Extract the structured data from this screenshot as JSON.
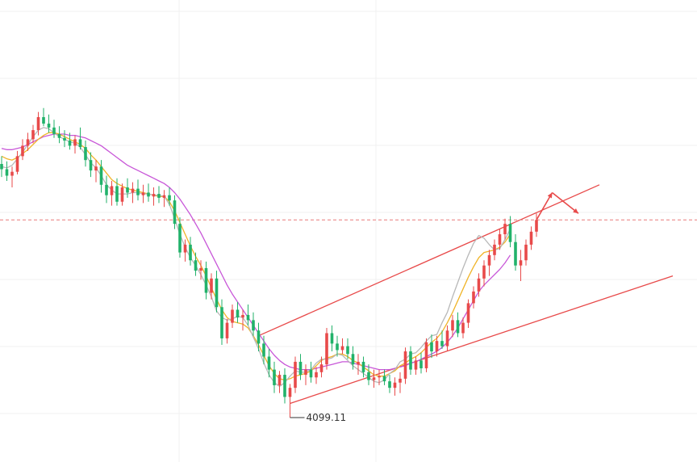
{
  "chart_data": {
    "type": "candlestick",
    "title": "",
    "xlabel": "",
    "ylabel": "",
    "ylim": [
      4065,
      4420
    ],
    "colors": {
      "up": "#e84a4a",
      "down": "#21b26a",
      "ma_short": "#b8b8b8",
      "ma_mid": "#f0b429",
      "ma_long": "#c857d8",
      "channel": "#e84a4a",
      "current_price_line": "#e87a7a",
      "grid": "#f0f0f0"
    },
    "low_annotation": {
      "label": "4099.11",
      "value": 4099.11,
      "candle_index": 55
    },
    "current_price": 4251,
    "candles": [
      [
        4294,
        4300,
        4284,
        4290
      ],
      [
        4290,
        4296,
        4281,
        4285
      ],
      [
        4285,
        4292,
        4276,
        4288
      ],
      [
        4288,
        4304,
        4286,
        4300
      ],
      [
        4300,
        4313,
        4297,
        4308
      ],
      [
        4308,
        4318,
        4304,
        4313
      ],
      [
        4313,
        4324,
        4310,
        4320
      ],
      [
        4320,
        4334,
        4316,
        4330
      ],
      [
        4330,
        4337,
        4323,
        4325
      ],
      [
        4325,
        4332,
        4318,
        4322
      ],
      [
        4322,
        4328,
        4314,
        4317
      ],
      [
        4317,
        4323,
        4310,
        4314
      ],
      [
        4314,
        4320,
        4307,
        4312
      ],
      [
        4312,
        4318,
        4305,
        4308
      ],
      [
        4308,
        4316,
        4302,
        4313
      ],
      [
        4313,
        4322,
        4305,
        4307
      ],
      [
        4307,
        4312,
        4292,
        4297
      ],
      [
        4297,
        4303,
        4284,
        4289
      ],
      [
        4289,
        4297,
        4280,
        4292
      ],
      [
        4292,
        4297,
        4272,
        4278
      ],
      [
        4278,
        4285,
        4264,
        4270
      ],
      [
        4270,
        4281,
        4262,
        4277
      ],
      [
        4277,
        4283,
        4262,
        4265
      ],
      [
        4265,
        4279,
        4262,
        4276
      ],
      [
        4276,
        4283,
        4268,
        4272
      ],
      [
        4272,
        4280,
        4264,
        4275
      ],
      [
        4275,
        4282,
        4266,
        4270
      ],
      [
        4270,
        4278,
        4264,
        4272
      ],
      [
        4272,
        4279,
        4265,
        4269
      ],
      [
        4269,
        4276,
        4262,
        4271
      ],
      [
        4271,
        4277,
        4264,
        4268
      ],
      [
        4268,
        4274,
        4261,
        4270
      ],
      [
        4270,
        4276,
        4262,
        4266
      ],
      [
        4266,
        4270,
        4244,
        4248
      ],
      [
        4248,
        4253,
        4222,
        4226
      ],
      [
        4226,
        4236,
        4219,
        4232
      ],
      [
        4232,
        4238,
        4216,
        4220
      ],
      [
        4220,
        4226,
        4208,
        4212
      ],
      [
        4212,
        4220,
        4205,
        4214
      ],
      [
        4214,
        4219,
        4190,
        4195
      ],
      [
        4195,
        4210,
        4190,
        4206
      ],
      [
        4206,
        4212,
        4180,
        4184
      ],
      [
        4184,
        4190,
        4155,
        4160
      ],
      [
        4160,
        4175,
        4156,
        4172
      ],
      [
        4172,
        4186,
        4168,
        4182
      ],
      [
        4182,
        4188,
        4172,
        4176
      ],
      [
        4176,
        4182,
        4166,
        4178
      ],
      [
        4178,
        4186,
        4170,
        4174
      ],
      [
        4174,
        4180,
        4162,
        4166
      ],
      [
        4166,
        4172,
        4150,
        4156
      ],
      [
        4156,
        4162,
        4140,
        4146
      ],
      [
        4146,
        4152,
        4130,
        4136
      ],
      [
        4136,
        4142,
        4118,
        4124
      ],
      [
        4124,
        4135,
        4118,
        4132
      ],
      [
        4132,
        4137,
        4110,
        4115
      ],
      [
        4115,
        4125,
        4099.11,
        4122
      ],
      [
        4122,
        4146,
        4118,
        4142
      ],
      [
        4142,
        4148,
        4128,
        4132
      ],
      [
        4132,
        4140,
        4124,
        4136
      ],
      [
        4136,
        4142,
        4126,
        4130
      ],
      [
        4130,
        4138,
        4125,
        4134
      ],
      [
        4134,
        4146,
        4130,
        4140
      ],
      [
        4140,
        4168,
        4136,
        4164
      ],
      [
        4164,
        4170,
        4150,
        4156
      ],
      [
        4156,
        4162,
        4146,
        4151
      ],
      [
        4151,
        4160,
        4148,
        4154
      ],
      [
        4154,
        4160,
        4144,
        4148
      ],
      [
        4148,
        4154,
        4136,
        4140
      ],
      [
        4140,
        4148,
        4132,
        4142
      ],
      [
        4142,
        4146,
        4130,
        4134
      ],
      [
        4134,
        4140,
        4124,
        4128
      ],
      [
        4128,
        4136,
        4122,
        4130
      ],
      [
        4130,
        4136,
        4124,
        4131
      ],
      [
        4131,
        4136,
        4124,
        4127
      ],
      [
        4127,
        4132,
        4118,
        4122
      ],
      [
        4122,
        4130,
        4116,
        4126
      ],
      [
        4126,
        4134,
        4118,
        4129
      ],
      [
        4129,
        4153,
        4125,
        4150
      ],
      [
        4150,
        4154,
        4132,
        4136
      ],
      [
        4136,
        4146,
        4132,
        4143
      ],
      [
        4143,
        4149,
        4133,
        4137
      ],
      [
        4137,
        4160,
        4134,
        4157
      ],
      [
        4157,
        4163,
        4145,
        4150
      ],
      [
        4150,
        4162,
        4146,
        4158
      ],
      [
        4158,
        4166,
        4152,
        4154
      ],
      [
        4154,
        4170,
        4150,
        4166
      ],
      [
        4166,
        4178,
        4161,
        4174
      ],
      [
        4174,
        4180,
        4161,
        4164
      ],
      [
        4164,
        4176,
        4160,
        4172
      ],
      [
        4172,
        4190,
        4168,
        4187
      ],
      [
        4187,
        4200,
        4183,
        4196
      ],
      [
        4196,
        4210,
        4192,
        4206
      ],
      [
        4206,
        4220,
        4200,
        4216
      ],
      [
        4216,
        4228,
        4208,
        4224
      ],
      [
        4224,
        4236,
        4220,
        4232
      ],
      [
        4232,
        4244,
        4228,
        4240
      ],
      [
        4240,
        4252,
        4236,
        4248
      ],
      [
        4248,
        4254,
        4230,
        4234
      ],
      [
        4234,
        4240,
        4212,
        4216
      ],
      [
        4216,
        4228,
        4204,
        4220
      ],
      [
        4220,
        4236,
        4216,
        4232
      ],
      [
        4232,
        4246,
        4228,
        4242
      ],
      [
        4242,
        4256,
        4238,
        4251
      ]
    ],
    "ma_short": [
      4292,
      4291,
      4293,
      4298,
      4303,
      4309,
      4315,
      4320,
      4322,
      4321,
      4318,
      4315,
      4313,
      4311,
      4310,
      4307,
      4301,
      4295,
      4291,
      4285,
      4278,
      4274,
      4271,
      4271,
      4271,
      4272,
      4272,
      4271,
      4271,
      4270,
      4270,
      4269,
      4263,
      4252,
      4240,
      4230,
      4222,
      4216,
      4209,
      4201,
      4192,
      4181,
      4176,
      4174,
      4175,
      4177,
      4176,
      4170,
      4161,
      4152,
      4141,
      4132,
      4126,
      4123,
      4126,
      4131,
      4135,
      4134,
      4134,
      4136,
      4141,
      4144,
      4144,
      4145,
      4148,
      4147,
      4143,
      4139,
      4136,
      4133,
      4130,
      4127,
      4126,
      4128,
      4133,
      4136,
      4142,
      4144,
      4148,
      4149,
      4153,
      4158,
      4162,
      4163,
      4172,
      4180,
      4192,
      4203,
      4214,
      4224,
      4233,
      4239,
      4237,
      4232,
      4228,
      4229,
      4236,
      4244
    ],
    "ma_mid": [
      4300,
      4298,
      4297,
      4299,
      4302,
      4305,
      4309,
      4313,
      4316,
      4318,
      4318,
      4317,
      4315,
      4313,
      4311,
      4309,
      4306,
      4301,
      4297,
      4292,
      4287,
      4282,
      4279,
      4277,
      4275,
      4274,
      4273,
      4272,
      4271,
      4270,
      4269,
      4269,
      4265,
      4258,
      4249,
      4240,
      4231,
      4223,
      4216,
      4208,
      4199,
      4190,
      4182,
      4176,
      4173,
      4172,
      4171,
      4168,
      4162,
      4155,
      4147,
      4139,
      4133,
      4129,
      4128,
      4129,
      4131,
      4132,
      4133,
      4135,
      4139,
      4143,
      4145,
      4146,
      4148,
      4148,
      4146,
      4143,
      4141,
      4138,
      4135,
      4132,
      4131,
      4131,
      4133,
      4135,
      4139,
      4141,
      4144,
      4146,
      4149,
      4153,
      4157,
      4160,
      4165,
      4172,
      4180,
      4189,
      4198,
      4207,
      4215,
      4222,
      4226,
      4227,
      4228,
      4230,
      4234,
      4240
    ],
    "ma_long": [
      4306,
      4305,
      4305,
      4306,
      4307,
      4309,
      4311,
      4313,
      4315,
      4316,
      4317,
      4317,
      4317,
      4316,
      4316,
      4315,
      4314,
      4312,
      4310,
      4308,
      4305,
      4302,
      4299,
      4296,
      4293,
      4291,
      4289,
      4287,
      4285,
      4283,
      4281,
      4279,
      4276,
      4272,
      4267,
      4261,
      4255,
      4248,
      4241,
      4233,
      4225,
      4217,
      4209,
      4201,
      4194,
      4188,
      4182,
      4176,
      4170,
      4164,
      4158,
      4152,
      4147,
      4143,
      4140,
      4138,
      4137,
      4136,
      4136,
      4136,
      4137,
      4138,
      4139,
      4140,
      4141,
      4142,
      4142,
      4141,
      4140,
      4139,
      4138,
      4137,
      4136,
      4136,
      4136,
      4137,
      4138,
      4139,
      4141,
      4142,
      4144,
      4146,
      4148,
      4150,
      4153,
      4157,
      4162,
      4168,
      4175,
      4182,
      4189,
      4196,
      4201,
      4205,
      4209,
      4213,
      4218,
      4224
    ],
    "channel": {
      "upper_start": {
        "candle_index": 49,
        "value": 4162
      },
      "upper_end": {
        "candle_index": 114,
        "value": 4278
      },
      "lower_start": {
        "candle_index": 55,
        "value": 4110
      },
      "lower_end": {
        "candle_index": 128,
        "value": 4208
      }
    },
    "projection": [
      {
        "candle_index": 102,
        "value": 4251
      },
      {
        "candle_index": 105,
        "value": 4272
      },
      {
        "candle_index": 110,
        "value": 4256
      }
    ]
  }
}
